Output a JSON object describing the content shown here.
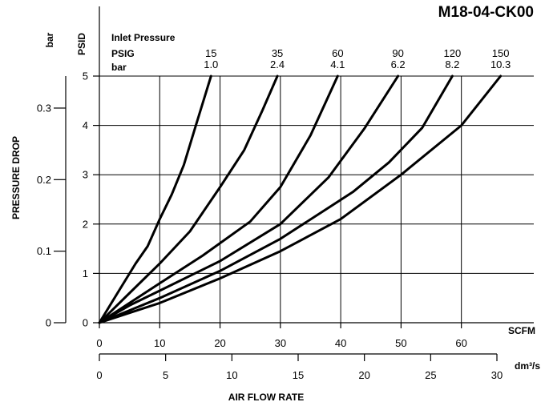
{
  "chart_data": {
    "type": "line",
    "title": "M18-04-CK00",
    "xlabel": "AIR FLOW RATE",
    "ylabel": "PRESSURE DROP",
    "x_unit_primary": "SCFM",
    "x_unit_secondary": "dm³/s",
    "y_unit_primary": "PSID",
    "y_unit_secondary": "bar",
    "xlim": [
      0,
      72
    ],
    "ylim": [
      0,
      5
    ],
    "grid": true,
    "x_ticks": [
      0,
      10,
      20,
      30,
      40,
      50,
      60
    ],
    "x_tick_labels": [
      "0",
      "10",
      "20",
      "30",
      "40",
      "50",
      "60"
    ],
    "y_ticks": [
      0,
      1,
      2,
      3,
      4,
      5
    ],
    "y_tick_labels": [
      "0",
      "1",
      "2",
      "3",
      "4",
      "5"
    ],
    "x2_ticks": [
      0,
      5,
      10,
      15,
      20,
      25,
      30
    ],
    "x2_tick_labels": [
      "0",
      "5",
      "10",
      "15",
      "20",
      "25",
      "30"
    ],
    "y2_ticks": [
      0,
      0.1,
      0.2,
      0.3
    ],
    "y2_tick_labels": [
      "0",
      "0.1",
      "0.2",
      "0.3"
    ],
    "legend_header": [
      "Inlet Pressure",
      "PSIG",
      "bar"
    ],
    "series": [
      {
        "psig": "15",
        "bar": "1.0",
        "x": [
          0,
          3,
          6,
          8,
          10,
          12,
          14,
          16,
          18.5
        ],
        "y": [
          0,
          0.6,
          1.2,
          1.55,
          2.1,
          2.6,
          3.2,
          4.0,
          5.0
        ]
      },
      {
        "psig": "35",
        "bar": "2.4",
        "x": [
          0,
          5,
          10,
          15,
          20,
          24,
          27,
          29.5
        ],
        "y": [
          0,
          0.6,
          1.2,
          1.85,
          2.75,
          3.5,
          4.3,
          5.0
        ]
      },
      {
        "psig": "60",
        "bar": "4.1",
        "x": [
          0,
          5,
          10,
          17,
          25,
          30,
          35,
          39.5
        ],
        "y": [
          0,
          0.4,
          0.8,
          1.35,
          2.05,
          2.75,
          3.8,
          5.0
        ]
      },
      {
        "psig": "90",
        "bar": "6.2",
        "x": [
          0,
          5,
          10,
          20,
          30,
          38,
          44,
          49.5
        ],
        "y": [
          0,
          0.35,
          0.65,
          1.25,
          2.0,
          2.95,
          3.95,
          5.0
        ]
      },
      {
        "psig": "120",
        "bar": "8.2",
        "x": [
          0,
          5,
          10,
          20,
          30,
          42,
          48,
          53.5,
          58.5
        ],
        "y": [
          0,
          0.25,
          0.5,
          1.05,
          1.7,
          2.65,
          3.25,
          3.95,
          5.0
        ]
      },
      {
        "psig": "150",
        "bar": "10.3",
        "x": [
          0,
          5,
          10,
          20,
          30,
          40,
          50,
          60,
          66.5
        ],
        "y": [
          0,
          0.2,
          0.4,
          0.9,
          1.45,
          2.1,
          3.0,
          4.0,
          5.0
        ]
      }
    ]
  }
}
